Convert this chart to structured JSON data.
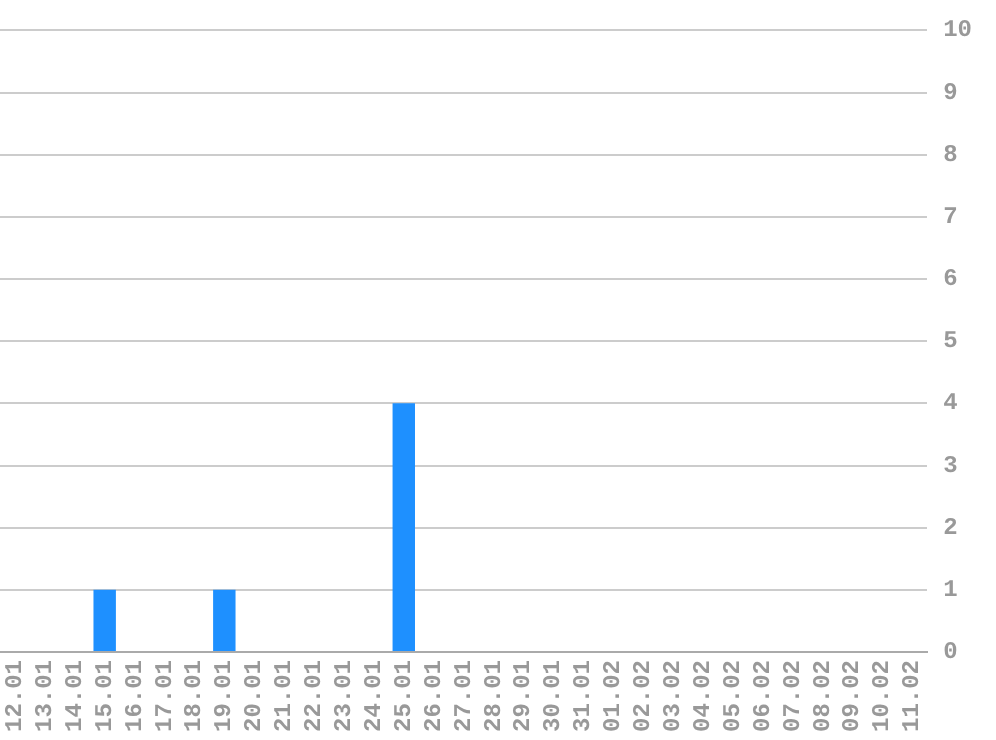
{
  "chart_data": {
    "type": "bar",
    "categories": [
      "12.01",
      "13.01",
      "14.01",
      "15.01",
      "16.01",
      "17.01",
      "18.01",
      "19.01",
      "20.01",
      "21.01",
      "22.01",
      "23.01",
      "24.01",
      "25.01",
      "26.01",
      "27.01",
      "28.01",
      "29.01",
      "30.01",
      "31.01",
      "01.02",
      "02.02",
      "03.02",
      "04.02",
      "05.02",
      "06.02",
      "07.02",
      "08.02",
      "09.02",
      "10.02",
      "11.02"
    ],
    "values": [
      0,
      0,
      0,
      1,
      0,
      0,
      0,
      1,
      0,
      0,
      0,
      0,
      0,
      4,
      0,
      0,
      0,
      0,
      0,
      0,
      0,
      0,
      0,
      0,
      0,
      0,
      0,
      0,
      0,
      0,
      0
    ],
    "color": "#1e90ff",
    "ylim": [
      0,
      10
    ],
    "yticks": [
      0,
      1,
      2,
      3,
      4,
      5,
      6,
      7,
      8,
      9,
      10
    ],
    "grid": "y",
    "legend": false
  }
}
